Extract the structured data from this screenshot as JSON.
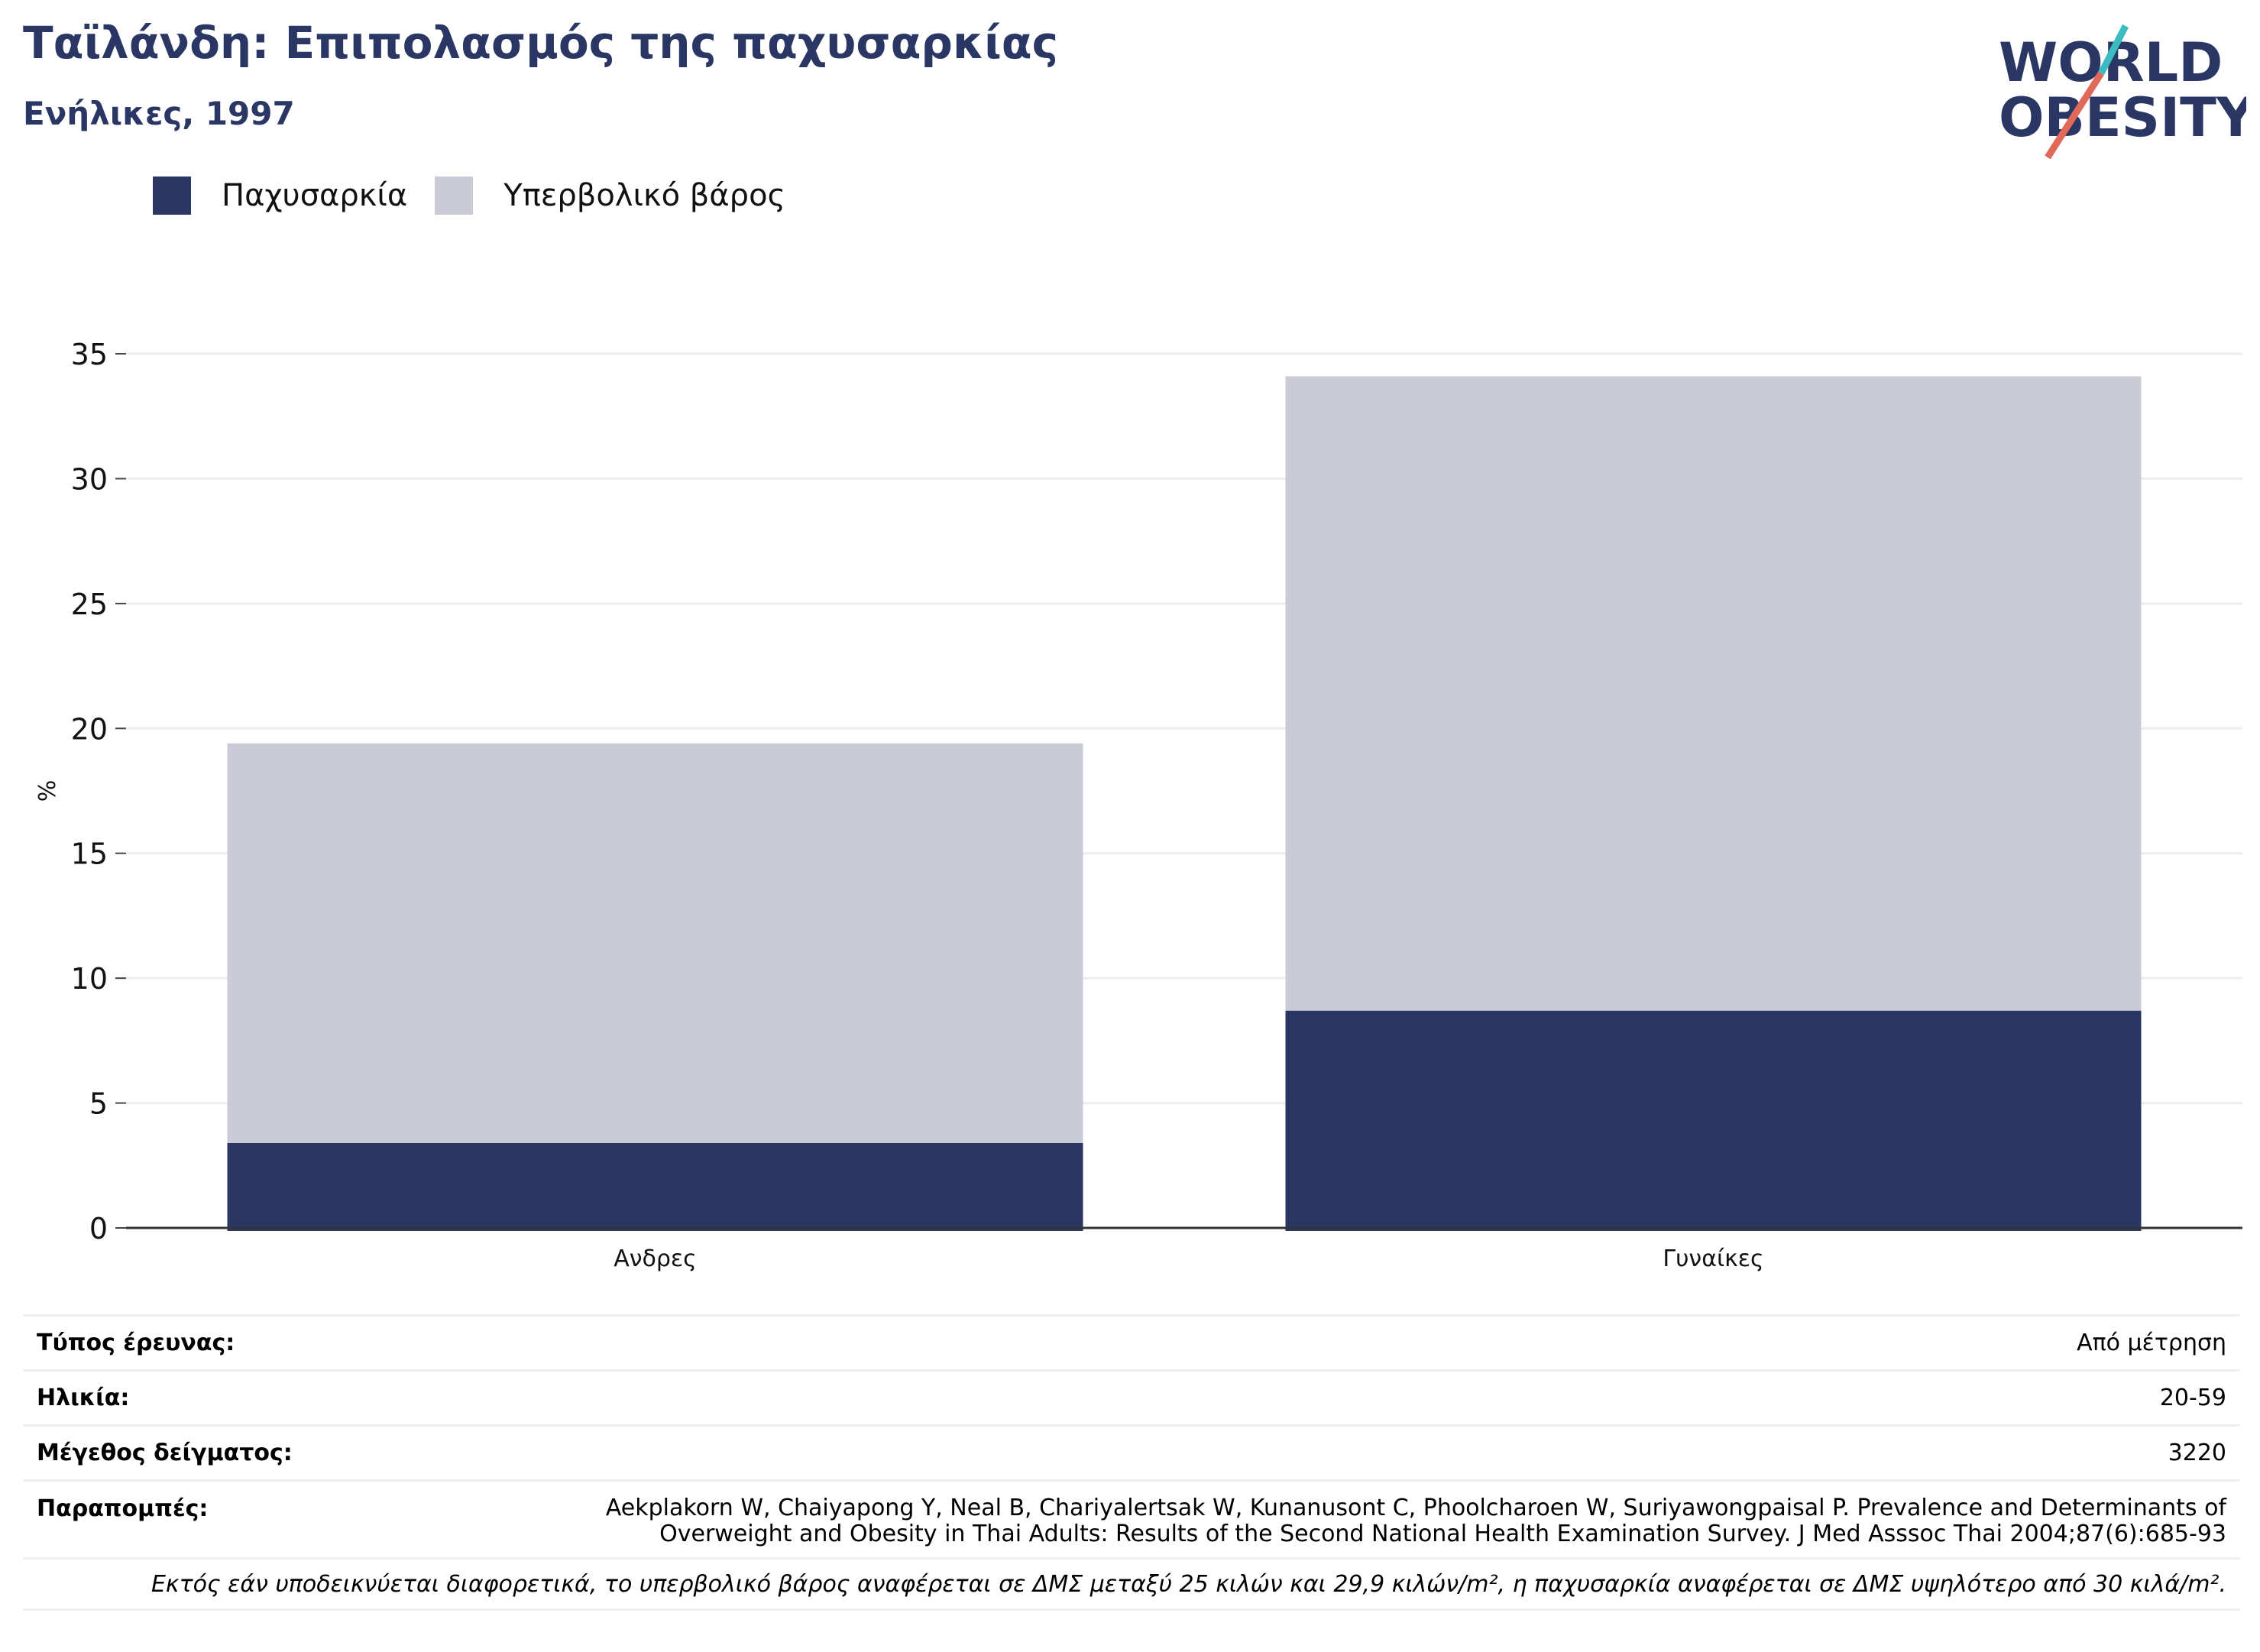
{
  "header": {
    "title": "Ταϊλάνδη: Επιπολασμός της παχυσαρκίας",
    "subtitle": "Ενήλικες, 1997"
  },
  "logo": {
    "line1": "WORLD",
    "line2": "OBESITY"
  },
  "colors": {
    "obesity": "#2a3764",
    "overweight": "#cacbd7",
    "title": "#2a3764",
    "logo_teal": "#3cbcc0",
    "logo_coral": "#e0695a"
  },
  "chart_data": {
    "type": "bar",
    "stacked": true,
    "categories": [
      "Ανδρες",
      "Γυναίκες"
    ],
    "series": [
      {
        "name": "Παχυσαρκία",
        "values": [
          3.4,
          8.7
        ]
      },
      {
        "name": "Υπερβολικό βάρος",
        "values": [
          16.0,
          25.4
        ]
      }
    ],
    "ylabel": "%",
    "ylim": [
      0,
      35
    ],
    "yticks": [
      0,
      5,
      10,
      15,
      20,
      25,
      30,
      35
    ],
    "grid": true,
    "legend": "top-left"
  },
  "info": {
    "survey_type": {
      "label": "Τύπος έρευνας:",
      "value": "Από μέτρηση"
    },
    "age": {
      "label": "Ηλικία:",
      "value": "20-59"
    },
    "sample": {
      "label": "Μέγεθος δείγματος:",
      "value": "3220"
    },
    "references": {
      "label": "Παραπομπές:",
      "line1": "Aekplakorn W, Chaiyapong Y, Neal B, Chariyalertsak W, Kunanusont C, Phoolcharoen W, Suriyawongpaisal P. Prevalence and Determinants of",
      "line2": "Overweight and Obesity in Thai Adults: Results of the Second National Health Examination Survey. J Med Asssoc Thai 2004;87(6):685-93"
    },
    "note": "Εκτός εάν υποδεικνύεται διαφορετικά, το υπερβολικό βάρος αναφέρεται σε ΔΜΣ μεταξύ 25 κιλών και 29,9 κιλών/m², η παχυσαρκία αναφέρεται σε ΔΜΣ υψηλότερο από 30 κιλά/m²."
  }
}
